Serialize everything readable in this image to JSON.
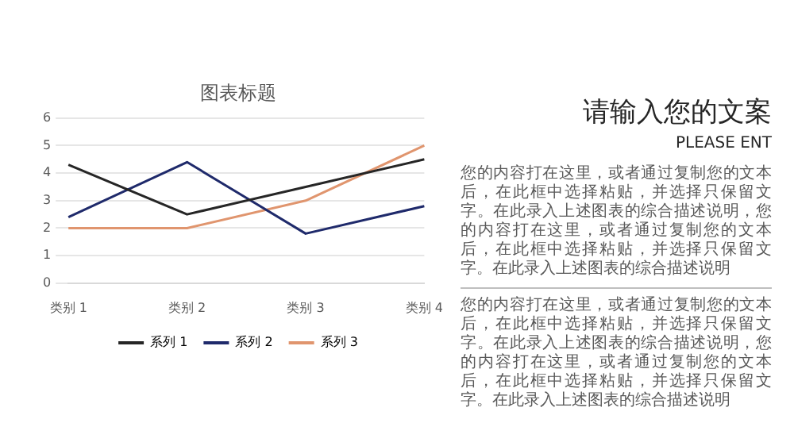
{
  "chart_data": {
    "type": "line",
    "title": "图表标题",
    "categories": [
      "类别 1",
      "类别 2",
      "类别 3",
      "类别 4"
    ],
    "series": [
      {
        "name": "系列 1",
        "color": "#262626",
        "values": [
          4.3,
          2.5,
          3.5,
          4.5
        ]
      },
      {
        "name": "系列 2",
        "color": "#1f2a6b",
        "values": [
          2.4,
          4.4,
          1.8,
          2.8
        ]
      },
      {
        "name": "系列 3",
        "color": "#e0956e",
        "values": [
          2,
          2,
          3,
          5
        ]
      }
    ],
    "ylim": [
      0,
      6
    ],
    "yticks": [
      0,
      1,
      2,
      3,
      4,
      5,
      6
    ],
    "grid": "y",
    "legend": "bottom",
    "marker": "none",
    "line_style": "solid",
    "annotations": [
      "请输入您的文案",
      "PLEASE ENT",
      "您的内容打在这里，或者通过复制您的文本后，在此框中选择粘贴，并选择只保留文字。在此录入上述图表的综合描述说明，您的内容打在这里，或者通过复制您的文本后，在此框中选择粘贴，并选择只保留文字。在此录入上述图表的综合描述说明",
      "您的内容打在这里，或者通过复制您的文本后，在此框中选择粘贴，并选择只保留文字。在此录入上述图表的综合描述说明，您的内容打在这里，或者通过复制您的文本后，在此框中选择粘贴，并选择只保留文字。在此录入上述图表的综合描述说明"
    ]
  }
}
